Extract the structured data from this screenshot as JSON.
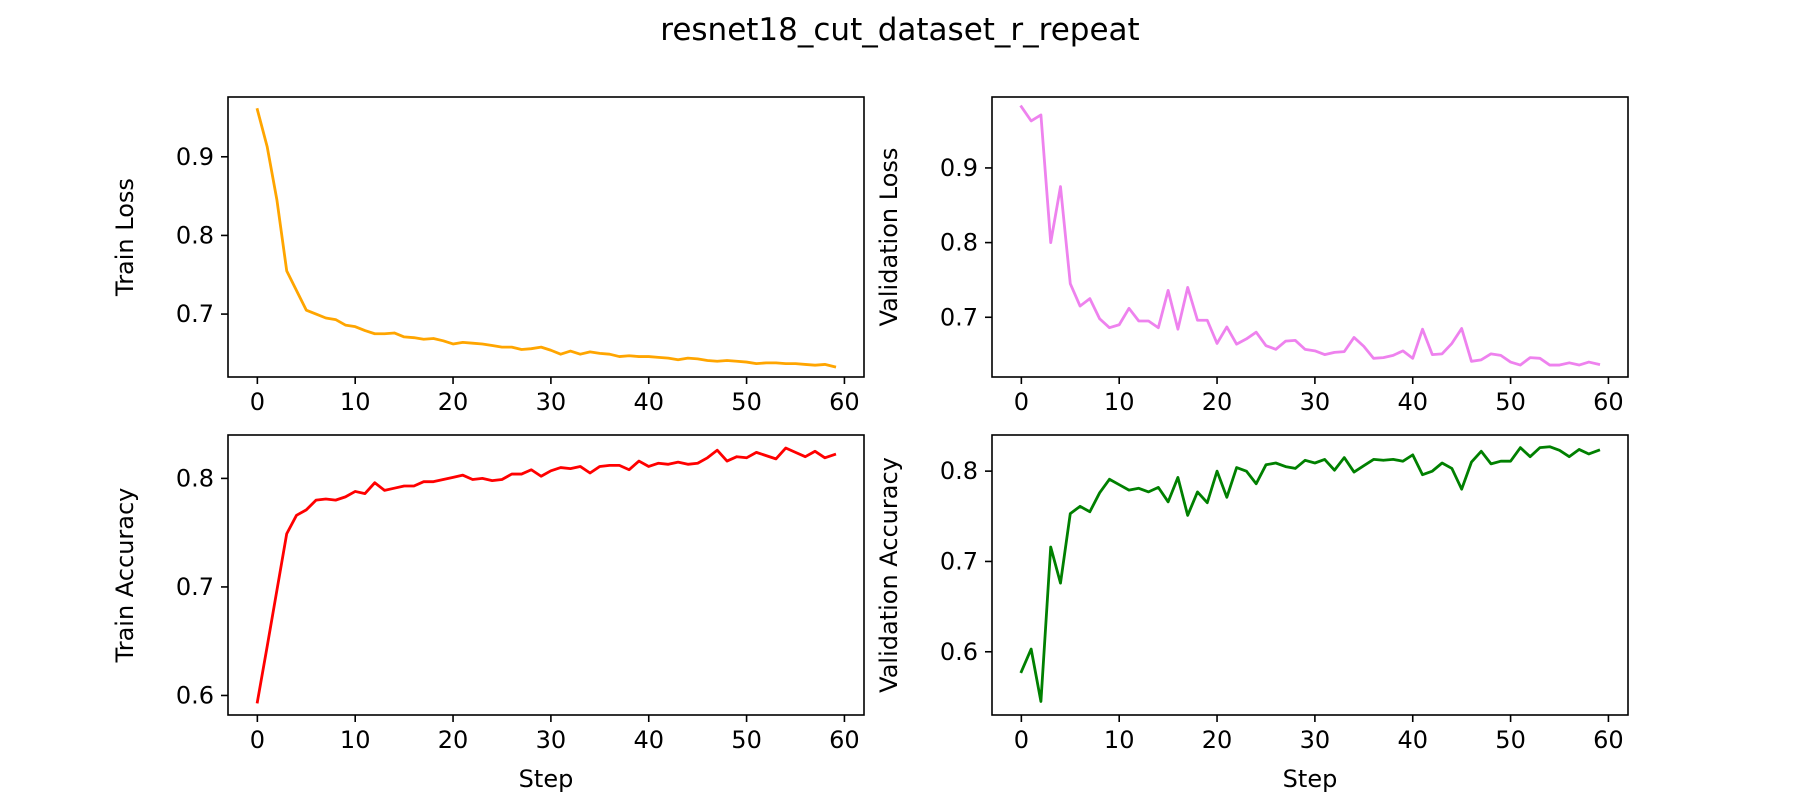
{
  "figure": {
    "title": "resnet18_cut_dataset_r_repeat"
  },
  "chart_data": [
    {
      "type": "line",
      "id": "train-loss",
      "xlabel": "",
      "ylabel": "Train Loss",
      "color": "#ffa500",
      "xlim": [
        -3,
        62
      ],
      "ylim": [
        0.62,
        0.976
      ],
      "xticks": [
        0,
        10,
        20,
        30,
        40,
        50,
        60
      ],
      "yticks": [
        0.7,
        0.8,
        0.9
      ],
      "grid": false,
      "series": [
        {
          "x": [
            0,
            1,
            2,
            3,
            4,
            5,
            6,
            7,
            8,
            9,
            10,
            11,
            12,
            13,
            14,
            15,
            16,
            17,
            18,
            19,
            20,
            21,
            22,
            23,
            24,
            25,
            26,
            27,
            28,
            29,
            30,
            31,
            32,
            33,
            34,
            35,
            36,
            37,
            38,
            39,
            40,
            41,
            42,
            43,
            44,
            45,
            46,
            47,
            48,
            49,
            50,
            51,
            52,
            53,
            54,
            55,
            56,
            57,
            58,
            59
          ],
          "values": [
            0.96,
            0.913,
            0.845,
            0.755,
            0.73,
            0.705,
            0.7,
            0.695,
            0.693,
            0.686,
            0.684,
            0.679,
            0.675,
            0.675,
            0.676,
            0.671,
            0.67,
            0.668,
            0.669,
            0.666,
            0.662,
            0.664,
            0.663,
            0.662,
            0.66,
            0.658,
            0.658,
            0.655,
            0.656,
            0.658,
            0.654,
            0.649,
            0.653,
            0.649,
            0.652,
            0.65,
            0.649,
            0.646,
            0.647,
            0.646,
            0.646,
            0.645,
            0.644,
            0.642,
            0.644,
            0.643,
            0.641,
            0.64,
            0.641,
            0.64,
            0.639,
            0.637,
            0.638,
            0.638,
            0.637,
            0.637,
            0.636,
            0.635,
            0.636,
            0.633
          ]
        }
      ]
    },
    {
      "type": "line",
      "id": "validation-loss",
      "xlabel": "",
      "ylabel": "Validation Loss",
      "color": "#ee82ee",
      "xlim": [
        -3,
        62
      ],
      "ylim": [
        0.62,
        0.995
      ],
      "xticks": [
        0,
        10,
        20,
        30,
        40,
        50,
        60
      ],
      "yticks": [
        0.7,
        0.8,
        0.9
      ],
      "grid": false,
      "series": [
        {
          "x": [
            0,
            1,
            2,
            3,
            4,
            5,
            6,
            7,
            8,
            9,
            10,
            11,
            12,
            13,
            14,
            15,
            16,
            17,
            18,
            19,
            20,
            21,
            22,
            23,
            24,
            25,
            26,
            27,
            28,
            29,
            30,
            31,
            32,
            33,
            34,
            35,
            36,
            37,
            38,
            39,
            40,
            41,
            42,
            43,
            44,
            45,
            46,
            47,
            48,
            49,
            50,
            51,
            52,
            53,
            54,
            55,
            56,
            57,
            58,
            59
          ],
          "values": [
            0.982,
            0.963,
            0.971,
            0.8,
            0.875,
            0.745,
            0.715,
            0.725,
            0.698,
            0.686,
            0.69,
            0.712,
            0.695,
            0.695,
            0.686,
            0.736,
            0.684,
            0.74,
            0.696,
            0.696,
            0.665,
            0.687,
            0.664,
            0.671,
            0.68,
            0.662,
            0.657,
            0.668,
            0.669,
            0.657,
            0.655,
            0.65,
            0.653,
            0.654,
            0.673,
            0.661,
            0.645,
            0.646,
            0.649,
            0.655,
            0.645,
            0.684,
            0.65,
            0.651,
            0.665,
            0.685,
            0.641,
            0.643,
            0.651,
            0.649,
            0.64,
            0.636,
            0.646,
            0.645,
            0.636,
            0.636,
            0.639,
            0.636,
            0.64,
            0.637
          ]
        }
      ]
    },
    {
      "type": "line",
      "id": "train-accuracy",
      "xlabel": "Step",
      "ylabel": "Train Accuracy",
      "color": "#ff0000",
      "xlim": [
        -3,
        62
      ],
      "ylim": [
        0.582,
        0.84
      ],
      "xticks": [
        0,
        10,
        20,
        30,
        40,
        50,
        60
      ],
      "yticks": [
        0.6,
        0.7,
        0.8
      ],
      "grid": false,
      "series": [
        {
          "x": [
            0,
            1,
            2,
            3,
            4,
            5,
            6,
            7,
            8,
            9,
            10,
            11,
            12,
            13,
            14,
            15,
            16,
            17,
            18,
            19,
            20,
            21,
            22,
            23,
            24,
            25,
            26,
            27,
            28,
            29,
            30,
            31,
            32,
            33,
            34,
            35,
            36,
            37,
            38,
            39,
            40,
            41,
            42,
            43,
            44,
            45,
            46,
            47,
            48,
            49,
            50,
            51,
            52,
            53,
            54,
            55,
            56,
            57,
            58,
            59
          ],
          "values": [
            0.594,
            0.645,
            0.697,
            0.749,
            0.766,
            0.771,
            0.78,
            0.781,
            0.78,
            0.783,
            0.788,
            0.786,
            0.796,
            0.789,
            0.791,
            0.793,
            0.793,
            0.797,
            0.797,
            0.799,
            0.801,
            0.803,
            0.799,
            0.8,
            0.798,
            0.799,
            0.804,
            0.804,
            0.808,
            0.802,
            0.807,
            0.81,
            0.809,
            0.811,
            0.805,
            0.811,
            0.812,
            0.812,
            0.808,
            0.816,
            0.811,
            0.814,
            0.813,
            0.815,
            0.813,
            0.814,
            0.819,
            0.826,
            0.816,
            0.82,
            0.819,
            0.824,
            0.821,
            0.818,
            0.828,
            0.824,
            0.82,
            0.825,
            0.819,
            0.822
          ]
        }
      ]
    },
    {
      "type": "line",
      "id": "validation-accuracy",
      "xlabel": "Step",
      "ylabel": "Validation Accuracy",
      "color": "#008000",
      "xlim": [
        -3,
        62
      ],
      "ylim": [
        0.53,
        0.84
      ],
      "xticks": [
        0,
        10,
        20,
        30,
        40,
        50,
        60
      ],
      "yticks": [
        0.6,
        0.7,
        0.8
      ],
      "grid": false,
      "series": [
        {
          "x": [
            0,
            1,
            2,
            3,
            4,
            5,
            6,
            7,
            8,
            9,
            10,
            11,
            12,
            13,
            14,
            15,
            16,
            17,
            18,
            19,
            20,
            21,
            22,
            23,
            24,
            25,
            26,
            27,
            28,
            29,
            30,
            31,
            32,
            33,
            34,
            35,
            36,
            37,
            38,
            39,
            40,
            41,
            42,
            43,
            44,
            45,
            46,
            47,
            48,
            49,
            50,
            51,
            52,
            53,
            54,
            55,
            56,
            57,
            58,
            59
          ],
          "values": [
            0.578,
            0.603,
            0.545,
            0.716,
            0.676,
            0.753,
            0.761,
            0.755,
            0.776,
            0.791,
            0.785,
            0.779,
            0.781,
            0.777,
            0.782,
            0.766,
            0.793,
            0.751,
            0.777,
            0.765,
            0.8,
            0.771,
            0.804,
            0.8,
            0.786,
            0.807,
            0.809,
            0.805,
            0.803,
            0.812,
            0.809,
            0.813,
            0.801,
            0.815,
            0.799,
            0.806,
            0.813,
            0.812,
            0.813,
            0.811,
            0.818,
            0.796,
            0.8,
            0.809,
            0.803,
            0.78,
            0.81,
            0.822,
            0.808,
            0.811,
            0.811,
            0.826,
            0.816,
            0.826,
            0.827,
            0.823,
            0.816,
            0.824,
            0.819,
            0.823
          ]
        }
      ]
    }
  ]
}
